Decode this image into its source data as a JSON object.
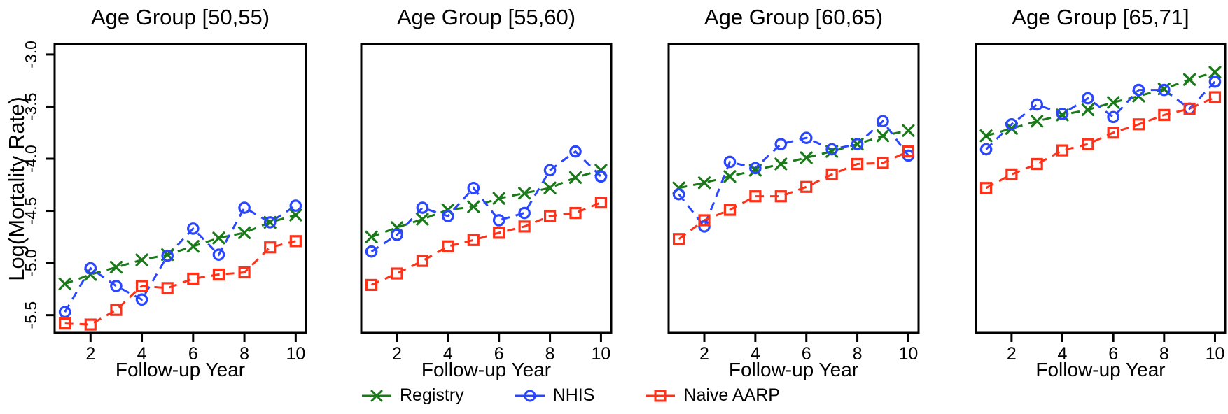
{
  "figure": {
    "y_axis_label": "Log(Mortality Rate)",
    "x_axis_label": "Follow-up Year",
    "background": "#ffffff",
    "axis_color": "#000000",
    "y_tick_labels": [
      "-3.0",
      "-3.5",
      "-4.0",
      "-4.5",
      "-5.0",
      "-5.5"
    ],
    "x_tick_labels": [
      "2",
      "4",
      "6",
      "8",
      "10"
    ]
  },
  "legend": {
    "items": [
      {
        "label": "Registry",
        "marker": "cross",
        "color": "#1a7a1a"
      },
      {
        "label": "NHIS",
        "marker": "circle",
        "color": "#2a46ff"
      },
      {
        "label": "Naive AARP",
        "marker": "square",
        "color": "#ff3118"
      }
    ]
  },
  "chart_data": [
    {
      "type": "line",
      "title": "Age Group [50,55)",
      "xlabel": "Follow-up Year",
      "ylabel": "Log(Mortality Rate)",
      "x": [
        1,
        2,
        3,
        4,
        5,
        6,
        7,
        8,
        9,
        10
      ],
      "xlim": [
        0.6,
        10.4
      ],
      "ylim": [
        -5.67,
        -2.9
      ],
      "x_tick_values": [
        2,
        4,
        6,
        8,
        10
      ],
      "y_tick_values": [
        -3.0,
        -3.5,
        -4.0,
        -4.5,
        -5.0,
        -5.5
      ],
      "series": [
        {
          "name": "Registry",
          "marker": "cross",
          "color": "#1a7a1a",
          "linestyle": "dashed",
          "values": [
            -5.2,
            -5.11,
            -5.04,
            -4.97,
            -4.92,
            -4.84,
            -4.76,
            -4.71,
            -4.61,
            -4.54
          ]
        },
        {
          "name": "NHIS",
          "marker": "circle",
          "color": "#2a46ff",
          "linestyle": "dashed",
          "values": [
            -5.47,
            -5.05,
            -5.22,
            -5.35,
            -4.93,
            -4.67,
            -4.92,
            -4.47,
            -4.61,
            -4.45
          ]
        },
        {
          "name": "Naive AARP",
          "marker": "square",
          "color": "#ff3118",
          "linestyle": "dashed",
          "values": [
            -5.58,
            -5.59,
            -5.45,
            -5.22,
            -5.24,
            -5.15,
            -5.11,
            -5.09,
            -4.85,
            -4.79
          ]
        }
      ]
    },
    {
      "type": "line",
      "title": "Age Group [55,60)",
      "xlabel": "Follow-up Year",
      "ylabel": "Log(Mortality Rate)",
      "x": [
        1,
        2,
        3,
        4,
        5,
        6,
        7,
        8,
        9,
        10
      ],
      "xlim": [
        0.6,
        10.4
      ],
      "ylim": [
        -5.67,
        -2.9
      ],
      "x_tick_values": [
        2,
        4,
        6,
        8,
        10
      ],
      "y_tick_values": [
        -3.0,
        -3.5,
        -4.0,
        -4.5,
        -5.0,
        -5.5
      ],
      "series": [
        {
          "name": "Registry",
          "marker": "cross",
          "color": "#1a7a1a",
          "linestyle": "dashed",
          "values": [
            -4.75,
            -4.66,
            -4.58,
            -4.49,
            -4.46,
            -4.38,
            -4.33,
            -4.28,
            -4.18,
            -4.11
          ]
        },
        {
          "name": "NHIS",
          "marker": "circle",
          "color": "#2a46ff",
          "linestyle": "dashed",
          "values": [
            -4.89,
            -4.73,
            -4.47,
            -4.55,
            -4.28,
            -4.59,
            -4.52,
            -4.11,
            -3.93,
            -4.17
          ]
        },
        {
          "name": "Naive AARP",
          "marker": "square",
          "color": "#ff3118",
          "linestyle": "dashed",
          "values": [
            -5.21,
            -5.1,
            -4.98,
            -4.84,
            -4.78,
            -4.71,
            -4.65,
            -4.55,
            -4.52,
            -4.42
          ]
        }
      ]
    },
    {
      "type": "line",
      "title": "Age Group [60,65)",
      "xlabel": "Follow-up Year",
      "ylabel": "Log(Mortality Rate)",
      "x": [
        1,
        2,
        3,
        4,
        5,
        6,
        7,
        8,
        9,
        10
      ],
      "xlim": [
        0.6,
        10.4
      ],
      "ylim": [
        -5.67,
        -2.9
      ],
      "x_tick_values": [
        2,
        4,
        6,
        8,
        10
      ],
      "y_tick_values": [
        -3.0,
        -3.5,
        -4.0,
        -4.5,
        -5.0,
        -5.5
      ],
      "series": [
        {
          "name": "Registry",
          "marker": "cross",
          "color": "#1a7a1a",
          "linestyle": "dashed",
          "values": [
            -4.28,
            -4.23,
            -4.17,
            -4.11,
            -4.05,
            -3.99,
            -3.93,
            -3.86,
            -3.78,
            -3.73
          ]
        },
        {
          "name": "NHIS",
          "marker": "circle",
          "color": "#2a46ff",
          "linestyle": "dashed",
          "values": [
            -4.34,
            -4.65,
            -4.03,
            -4.09,
            -3.86,
            -3.8,
            -3.91,
            -3.86,
            -3.64,
            -3.97
          ]
        },
        {
          "name": "Naive AARP",
          "marker": "square",
          "color": "#ff3118",
          "linestyle": "dashed",
          "values": [
            -4.77,
            -4.59,
            -4.49,
            -4.36,
            -4.36,
            -4.27,
            -4.15,
            -4.05,
            -4.04,
            -3.93
          ]
        }
      ]
    },
    {
      "type": "line",
      "title": "Age Group [65,71]",
      "xlabel": "Follow-up Year",
      "ylabel": "Log(Mortality Rate)",
      "x": [
        1,
        2,
        3,
        4,
        5,
        6,
        7,
        8,
        9,
        10
      ],
      "xlim": [
        0.6,
        10.4
      ],
      "ylim": [
        -5.67,
        -2.9
      ],
      "x_tick_values": [
        2,
        4,
        6,
        8,
        10
      ],
      "y_tick_values": [
        -3.0,
        -3.5,
        -4.0,
        -4.5,
        -5.0,
        -5.5
      ],
      "series": [
        {
          "name": "Registry",
          "marker": "cross",
          "color": "#1a7a1a",
          "linestyle": "dashed",
          "values": [
            -3.78,
            -3.71,
            -3.64,
            -3.58,
            -3.53,
            -3.46,
            -3.4,
            -3.33,
            -3.24,
            -3.17
          ]
        },
        {
          "name": "NHIS",
          "marker": "circle",
          "color": "#2a46ff",
          "linestyle": "dashed",
          "values": [
            -3.91,
            -3.67,
            -3.48,
            -3.57,
            -3.42,
            -3.6,
            -3.34,
            -3.34,
            -3.52,
            -3.26
          ]
        },
        {
          "name": "Naive AARP",
          "marker": "square",
          "color": "#ff3118",
          "linestyle": "dashed",
          "values": [
            -4.28,
            -4.15,
            -4.05,
            -3.92,
            -3.86,
            -3.75,
            -3.67,
            -3.58,
            -3.52,
            -3.41
          ]
        }
      ]
    }
  ]
}
